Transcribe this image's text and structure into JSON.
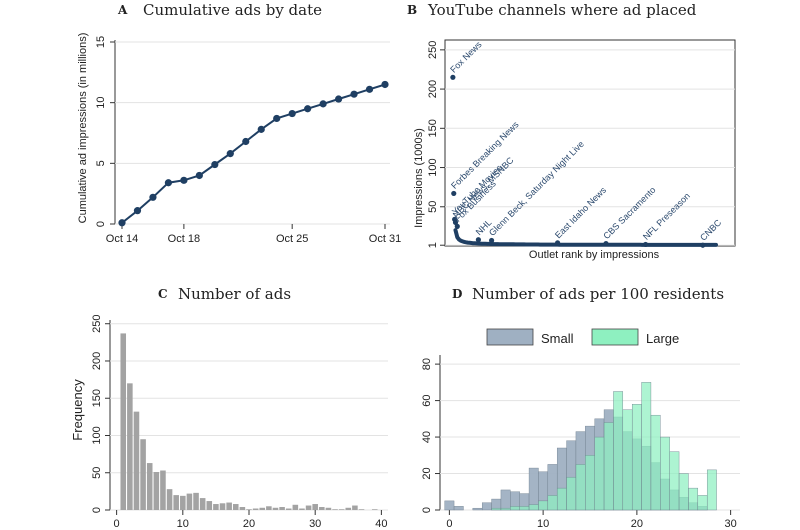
{
  "chart_data": [
    {
      "id": "A",
      "letter": "A",
      "type": "line",
      "title": "Cumulative ads by date",
      "ylabel": "Cumulative ad impressions (in millions)",
      "xlabel": "",
      "x": [
        0,
        1,
        2,
        3,
        4,
        5,
        6,
        7,
        8,
        9,
        10,
        11,
        12,
        13,
        14,
        15,
        16,
        17
      ],
      "values": [
        0.1,
        1.1,
        2.2,
        3.4,
        3.6,
        4.0,
        4.9,
        5.8,
        6.8,
        7.8,
        8.7,
        9.1,
        9.5,
        9.9,
        10.3,
        10.7,
        11.1,
        11.5
      ],
      "xticks": [
        {
          "v": 0,
          "label": "Oct 14"
        },
        {
          "v": 4,
          "label": "Oct 18"
        },
        {
          "v": 11,
          "label": "Oct 25"
        },
        {
          "v": 17,
          "label": "Oct 31"
        }
      ],
      "yticks": [
        0,
        5,
        10,
        15
      ],
      "xlim": [
        0,
        17
      ],
      "ylim": [
        0,
        15
      ],
      "color": "#1f3f63"
    },
    {
      "id": "B",
      "letter": "B",
      "type": "scatter",
      "title": "YouTube channels where ad placed",
      "ylabel": "Impressions (1000s)",
      "xlabel": "Outlet rank by impressions",
      "yticks": [
        1,
        50,
        100,
        150,
        200,
        250
      ],
      "ylim": [
        0,
        260
      ],
      "xlim": [
        0,
        300
      ],
      "labeled_points": [
        {
          "rank": 1,
          "value": 215,
          "label": "Fox News"
        },
        {
          "rank": 2,
          "value": 67,
          "label": "Forbes Breaking News"
        },
        {
          "rank": 3,
          "value": 34,
          "label": "YouTube Movies"
        },
        {
          "rank": 4,
          "value": 30,
          "label": "NBC News, MSNBC"
        },
        {
          "rank": 6,
          "value": 25,
          "label": "Fox Business"
        },
        {
          "rank": 30,
          "value": 8,
          "label": "NHL"
        },
        {
          "rank": 45,
          "value": 7,
          "label": "Glenn Beck, Saturday Night Live"
        },
        {
          "rank": 120,
          "value": 4,
          "label": "East Idaho News"
        },
        {
          "rank": 175,
          "value": 3,
          "label": "CBS Sacramento"
        },
        {
          "rank": 220,
          "value": 2,
          "label": "NFL Preseason"
        },
        {
          "rank": 285,
          "value": 1,
          "label": "CNBC"
        }
      ],
      "tail_count": 300,
      "color": "#1f3f63"
    },
    {
      "id": "C",
      "letter": "C",
      "type": "bar",
      "title": "Number of ads",
      "ylabel": "Frequency",
      "xlabel": "",
      "x": [
        1,
        2,
        3,
        4,
        5,
        6,
        7,
        8,
        9,
        10,
        11,
        12,
        13,
        14,
        15,
        16,
        17,
        18,
        19,
        20,
        21,
        22,
        23,
        24,
        25,
        26,
        27,
        28,
        29,
        30,
        31,
        32,
        33,
        34,
        35,
        36,
        37,
        38,
        39
      ],
      "values": [
        237,
        170,
        132,
        95,
        63,
        51,
        53,
        28,
        20,
        19,
        22,
        23,
        16,
        12,
        8,
        9,
        10,
        8,
        4,
        1,
        2,
        3,
        5,
        3,
        4,
        2,
        7,
        2,
        6,
        8,
        4,
        3,
        1,
        1,
        3,
        6,
        1,
        0,
        1
      ],
      "xticks": [
        0,
        10,
        20,
        30,
        40
      ],
      "yticks": [
        0,
        50,
        100,
        150,
        200,
        250
      ],
      "xlim": [
        -1,
        41
      ],
      "ylim": [
        0,
        255
      ],
      "color": "#a3a3a3"
    },
    {
      "id": "D",
      "letter": "D",
      "type": "bar",
      "title": "Number of ads per 100 residents",
      "ylabel": "",
      "xlabel": "",
      "series": [
        {
          "name": "Small",
          "color": "#9fb0c2",
          "x": [
            0,
            1,
            2,
            3,
            4,
            5,
            6,
            7,
            8,
            9,
            10,
            11,
            12,
            13,
            14,
            15,
            16,
            17,
            18,
            19,
            20,
            21,
            22,
            23,
            24,
            25,
            26,
            27,
            28
          ],
          "values": [
            5,
            2,
            0,
            1,
            4,
            6,
            11,
            10,
            9,
            23,
            21,
            25,
            34,
            38,
            43,
            46,
            50,
            55,
            51,
            43,
            39,
            35,
            26,
            17,
            11,
            7,
            4,
            2,
            0
          ]
        },
        {
          "name": "Large",
          "color": "#8ef0c0",
          "x": [
            0,
            1,
            2,
            3,
            4,
            5,
            6,
            7,
            8,
            9,
            10,
            11,
            12,
            13,
            14,
            15,
            16,
            17,
            18,
            19,
            20,
            21,
            22,
            23,
            24,
            25,
            26,
            27,
            28
          ],
          "values": [
            0,
            0,
            0,
            0,
            0,
            1,
            1,
            2,
            2,
            3,
            5,
            8,
            12,
            18,
            25,
            30,
            40,
            48,
            65,
            55,
            58,
            70,
            52,
            40,
            32,
            20,
            12,
            8,
            22
          ]
        }
      ],
      "xticks": [
        0,
        10,
        20,
        30
      ],
      "yticks": [
        0,
        20,
        40,
        60,
        80
      ],
      "xlim": [
        -1,
        31
      ],
      "ylim": [
        0,
        85
      ]
    }
  ]
}
